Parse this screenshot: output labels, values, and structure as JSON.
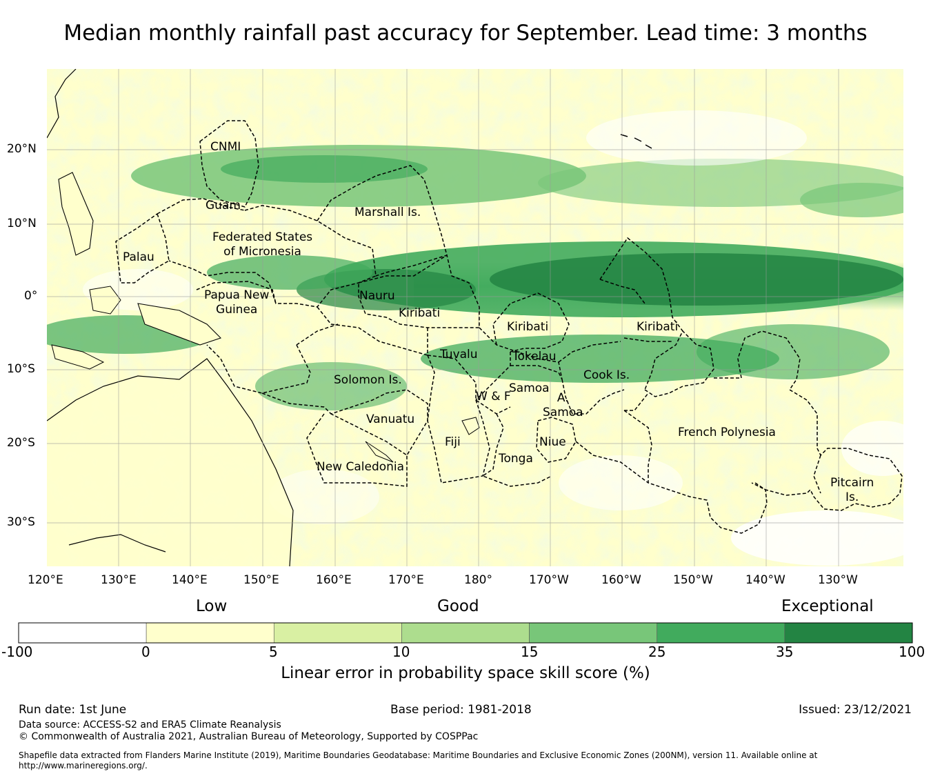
{
  "title": "Median monthly rainfall past accuracy for September. Lead time: 3 months",
  "map": {
    "lon_range": [
      120,
      239
    ],
    "lat_range": [
      -36,
      31
    ],
    "lat_ticks": [
      "20°N",
      "10°N",
      "0°",
      "10°S",
      "20°S",
      "30°S"
    ],
    "lon_ticks": [
      "120°E",
      "130°E",
      "140°E",
      "150°E",
      "160°E",
      "170°E",
      "180°",
      "170°W",
      "160°W",
      "150°W",
      "140°W",
      "130°W"
    ],
    "regions": [
      "CNMI",
      "Guam",
      "Marshall Is.",
      "Federated States\nof Micronesia",
      "Palau",
      "Papua New\nGuinea",
      "Nauru",
      "Kiribati",
      "Kiribati",
      "Kiribati",
      "Tuvalu",
      "Tokelau",
      "Solomon Is.",
      "Samoa",
      "W & F",
      "A.\nSamoa",
      "Cook Is.",
      "Vanuatu",
      "Fiji",
      "Niue",
      "Tonga",
      "New Caledonia",
      "French Polynesia",
      "Pitcairn\nIs."
    ],
    "colors": {
      "ocean_base": "#d9f0a3",
      "land_outline": "#000000",
      "grid": "#b0b0b0",
      "boundary": "#000000"
    }
  },
  "colorbar": {
    "category_labels": [
      "Low",
      "Good",
      "Exceptional"
    ],
    "ticks": [
      "-100",
      "0",
      "5",
      "10",
      "15",
      "25",
      "35",
      "100"
    ],
    "colors": [
      "#ffffff",
      "#ffffcc",
      "#d9f0a3",
      "#addd8e",
      "#78c679",
      "#41ab5d",
      "#238443"
    ],
    "title": "Linear error in probability space skill score (%)"
  },
  "footer": {
    "run_date": "Run date: 1st June",
    "base_period": "Base period: 1981-2018",
    "issued": "Issued: 23/12/2021",
    "data_source": "Data source: ACCESS-S2 and ERA5 Climate Reanalysis",
    "copyright": "© Commonwealth of Australia 2021, Australian Bureau of Meteorology, Supported by COSPPac",
    "shapefile_line1": "Shapefile data extracted from Flanders Marine Institute (2019), Maritime Boundaries Geodatabase: Maritime Boundaries and Exclusive Economic Zones (200NM), version 11. Available online at",
    "shapefile_line2": "http://www.marineregions.org/."
  }
}
